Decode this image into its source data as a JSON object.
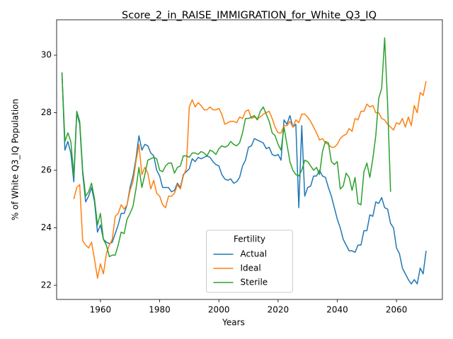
{
  "chart_data": {
    "type": "line",
    "title": "Score_2_in_RAISE_IMMIGRATION_for_White_Q3_IQ",
    "xlabel": "Years",
    "ylabel": "% of White Q3_IQ Population",
    "legend_title": "Fertility",
    "legend": "lower center",
    "xlim": [
      1945.2,
      2075.5
    ],
    "ylim": [
      21.51,
      31.23
    ],
    "xticks": [
      1960,
      1980,
      2000,
      2020,
      2040,
      2060
    ],
    "yticks": [
      22,
      24,
      26,
      28,
      30
    ],
    "grid": false,
    "x": [
      1947,
      1948,
      1949,
      1950,
      1951,
      1952,
      1953,
      1954,
      1955,
      1956,
      1957,
      1958,
      1959,
      1960,
      1961,
      1962,
      1963,
      1964,
      1965,
      1966,
      1967,
      1968,
      1969,
      1970,
      1971,
      1972,
      1973,
      1974,
      1975,
      1976,
      1977,
      1978,
      1979,
      1980,
      1981,
      1982,
      1983,
      1984,
      1985,
      1986,
      1987,
      1988,
      1989,
      1990,
      1991,
      1992,
      1993,
      1994,
      1995,
      1996,
      1997,
      1998,
      1999,
      2000,
      2001,
      2002,
      2003,
      2004,
      2005,
      2006,
      2007,
      2008,
      2009,
      2010,
      2011,
      2012,
      2013,
      2014,
      2015,
      2016,
      2017,
      2018,
      2019,
      2020,
      2021,
      2022,
      2023,
      2024,
      2025,
      2026,
      2027,
      2028,
      2029,
      2030,
      2031,
      2032,
      2033,
      2034,
      2035,
      2036,
      2037,
      2038,
      2039,
      2040,
      2041,
      2042,
      2043,
      2044,
      2045,
      2046,
      2047,
      2048,
      2049,
      2050,
      2051,
      2052,
      2053,
      2054,
      2055,
      2056,
      2057,
      2058,
      2059,
      2060,
      2061,
      2062,
      2063,
      2064,
      2065,
      2066,
      2067,
      2068,
      2069,
      2070
    ],
    "series": [
      {
        "name": "Actual",
        "color": "#1f77b4",
        "values": [
          29.4,
          26.7,
          27.0,
          26.6,
          25.6,
          28.0,
          27.6,
          25.9,
          24.9,
          25.1,
          25.4,
          24.9,
          23.85,
          24.1,
          23.6,
          23.5,
          23.45,
          23.5,
          23.8,
          24.1,
          24.5,
          24.5,
          24.8,
          25.4,
          25.8,
          26.4,
          27.2,
          26.7,
          26.9,
          26.85,
          26.6,
          26.5,
          26.0,
          25.8,
          25.4,
          25.4,
          25.4,
          25.25,
          25.3,
          25.55,
          25.4,
          25.85,
          25.95,
          26.05,
          26.4,
          26.3,
          26.45,
          26.4,
          26.45,
          26.5,
          26.45,
          26.3,
          26.2,
          26.15,
          25.85,
          25.7,
          25.65,
          25.7,
          25.55,
          25.6,
          25.75,
          26.15,
          26.35,
          26.8,
          26.85,
          27.1,
          27.05,
          27.0,
          26.95,
          26.75,
          26.8,
          26.55,
          26.5,
          26.55,
          26.35,
          27.75,
          27.6,
          27.9,
          27.5,
          27.6,
          24.7,
          27.55,
          25.1,
          25.4,
          25.45,
          25.8,
          25.8,
          26.0,
          25.8,
          25.75,
          25.4,
          25.1,
          24.7,
          24.3,
          24.0,
          23.6,
          23.4,
          23.2,
          23.2,
          23.15,
          23.4,
          23.4,
          23.9,
          23.9,
          24.45,
          24.4,
          24.9,
          24.85,
          25.05,
          24.7,
          24.65,
          24.15,
          24.0,
          23.3,
          23.1,
          22.6,
          22.4,
          22.2,
          22.05,
          22.2,
          22.05,
          22.6,
          22.4,
          23.2
        ]
      },
      {
        "name": "Ideal",
        "color": "#ff7f0e",
        "values": [
          null,
          null,
          null,
          null,
          25.0,
          25.4,
          25.5,
          23.55,
          23.4,
          23.3,
          23.5,
          22.9,
          22.25,
          22.75,
          22.4,
          23.1,
          23.4,
          23.6,
          24.4,
          24.5,
          24.8,
          24.65,
          24.8,
          25.3,
          25.6,
          26.3,
          26.9,
          25.85,
          26.1,
          25.9,
          25.35,
          25.65,
          25.2,
          25.1,
          24.8,
          24.7,
          25.1,
          25.1,
          25.2,
          25.5,
          25.35,
          25.8,
          26.05,
          28.2,
          28.45,
          28.2,
          28.35,
          28.25,
          28.1,
          28.1,
          28.2,
          28.1,
          28.1,
          28.15,
          27.95,
          27.6,
          27.65,
          27.7,
          27.7,
          27.65,
          27.85,
          27.8,
          28.05,
          28.1,
          27.8,
          27.85,
          27.8,
          27.85,
          27.95,
          28.0,
          28.05,
          27.8,
          27.5,
          27.3,
          27.3,
          27.55,
          27.55,
          27.7,
          27.5,
          27.75,
          27.65,
          27.95,
          27.95,
          27.85,
          27.7,
          27.5,
          27.3,
          27.05,
          27.1,
          26.95,
          26.9,
          26.8,
          26.8,
          26.9,
          27.1,
          27.2,
          27.25,
          27.45,
          27.35,
          27.8,
          27.75,
          28.05,
          28.05,
          28.3,
          28.2,
          28.25,
          28.0,
          28.0,
          27.8,
          27.75,
          27.6,
          27.5,
          27.4,
          27.65,
          27.6,
          27.8,
          27.5,
          27.85,
          27.55,
          28.25,
          28.0,
          28.7,
          28.6,
          29.1
        ]
      },
      {
        "name": "Sterile",
        "color": "#2ca02c",
        "values": [
          29.4,
          27.0,
          27.3,
          27.0,
          25.8,
          28.05,
          27.7,
          26.0,
          25.1,
          25.25,
          25.55,
          25.0,
          24.1,
          24.5,
          23.6,
          23.4,
          23.0,
          23.05,
          23.05,
          23.4,
          23.85,
          23.8,
          24.3,
          24.5,
          24.75,
          25.35,
          26.1,
          25.4,
          25.85,
          26.35,
          26.4,
          26.45,
          26.4,
          26.0,
          25.95,
          26.15,
          26.25,
          26.25,
          25.9,
          26.1,
          26.15,
          26.5,
          26.5,
          26.45,
          26.6,
          26.6,
          26.55,
          26.65,
          26.6,
          26.5,
          26.7,
          26.65,
          26.55,
          26.75,
          26.85,
          26.8,
          26.85,
          27.0,
          26.9,
          26.85,
          26.95,
          27.3,
          27.8,
          27.8,
          27.85,
          27.9,
          27.75,
          28.05,
          28.2,
          27.95,
          27.7,
          27.3,
          27.2,
          26.9,
          26.7,
          27.5,
          26.9,
          26.3,
          26.0,
          25.85,
          25.8,
          26.0,
          26.35,
          26.3,
          26.15,
          26.0,
          26.1,
          25.85,
          26.65,
          27.0,
          26.95,
          26.3,
          26.2,
          26.3,
          25.35,
          25.45,
          25.9,
          25.75,
          25.3,
          25.75,
          24.85,
          24.8,
          25.95,
          26.25,
          25.75,
          26.4,
          27.2,
          28.5,
          28.85,
          30.6,
          28.3,
          25.25,
          null,
          null,
          null,
          null,
          null,
          null,
          null,
          null,
          null,
          null,
          null,
          null
        ]
      }
    ]
  }
}
